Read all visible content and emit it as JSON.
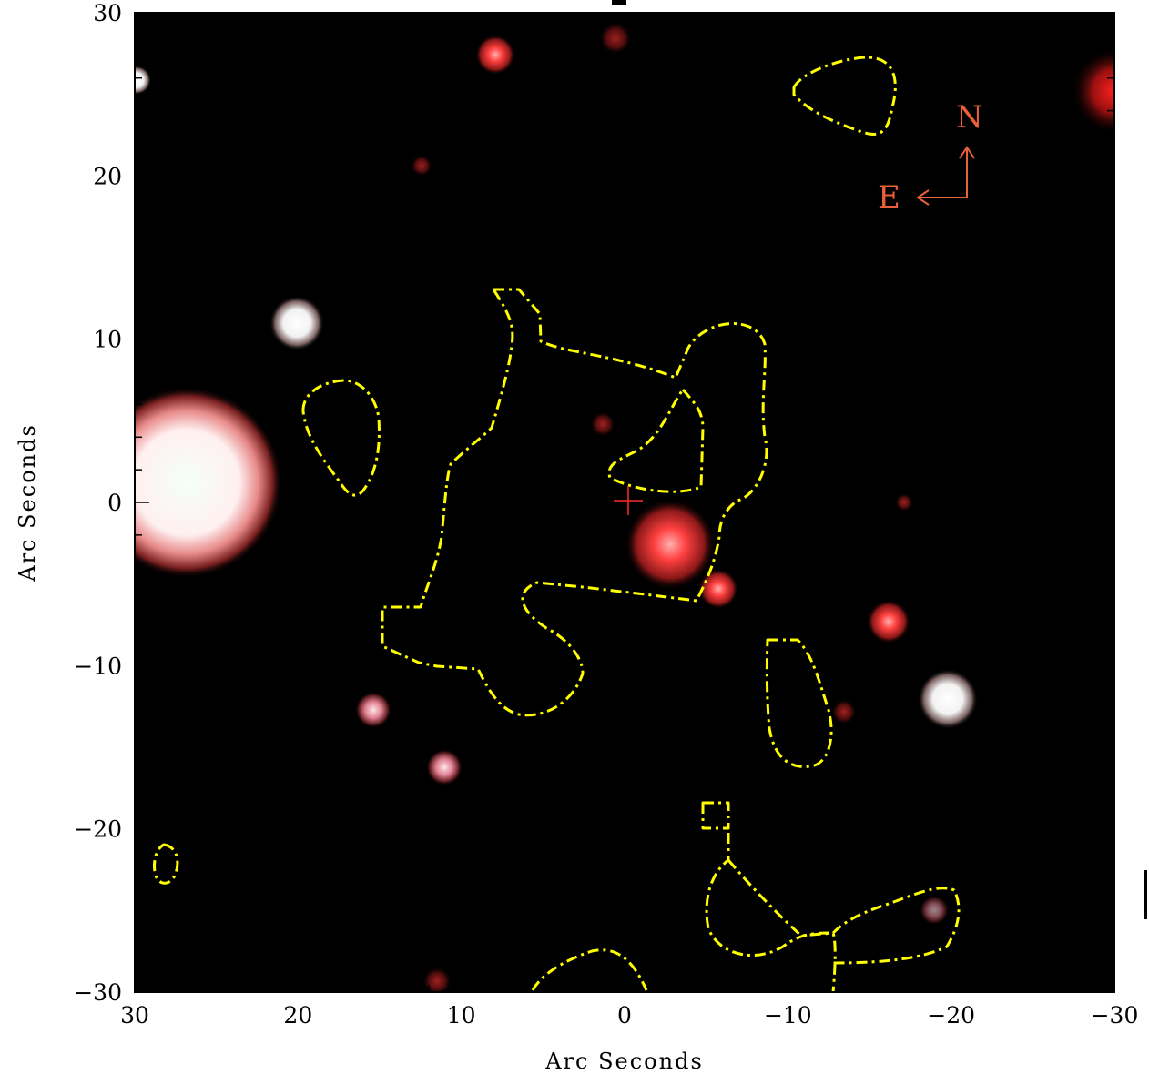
{
  "image": {
    "xlabel": "Arc Seconds",
    "ylabel": "Arc Seconds",
    "x_ticks": [
      "30",
      "20",
      "10",
      "0",
      "−10",
      "−20",
      "−30"
    ],
    "y_ticks": [
      "30",
      "20",
      "10",
      "0",
      "−10",
      "−20",
      "−30"
    ],
    "compass": {
      "north": "N",
      "east": "E",
      "color": "#e8613a"
    },
    "colors": {
      "background": "#000000",
      "contour": "#ffff00",
      "cross": "#ff2a2a",
      "frame": "#000000"
    }
  }
}
